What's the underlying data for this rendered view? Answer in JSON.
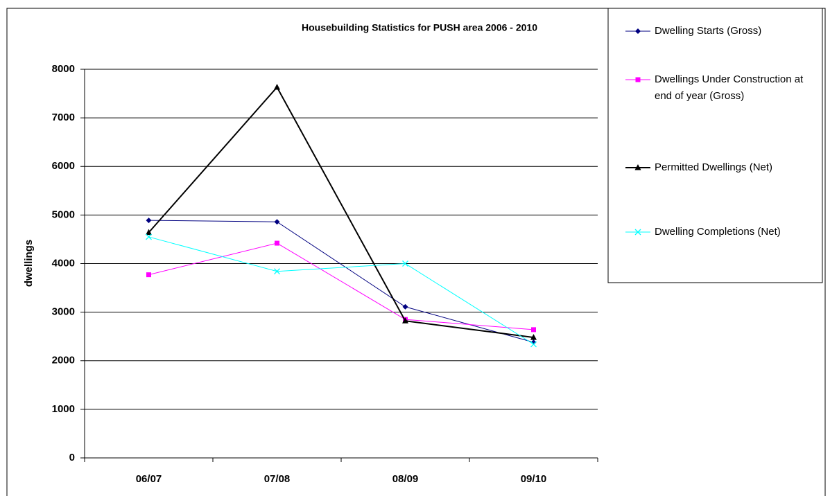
{
  "chart_data": {
    "type": "line",
    "title": "Housebuilding Statistics for PUSH area 2006 - 2010",
    "y_label": "dwellings",
    "categories": [
      "06/07",
      "07/08",
      "08/09",
      "09/10"
    ],
    "series": [
      {
        "name": "Dwelling Starts (Gross)",
        "color": "#000080",
        "marker": "diamond",
        "values": [
          4890,
          4860,
          3110,
          2380
        ]
      },
      {
        "name": "Dwellings Under Construction at end of year (Gross)",
        "color": "#ff00ff",
        "marker": "square",
        "values": [
          3770,
          4420,
          2850,
          2640
        ]
      },
      {
        "name": "Permitted Dwellings (Net)",
        "color": "#000000",
        "marker": "triangle",
        "values": [
          4640,
          7630,
          2820,
          2480
        ]
      },
      {
        "name": "Dwelling Completions (Net)",
        "color": "#00ffff",
        "marker": "x",
        "values": [
          4550,
          3840,
          4000,
          2340
        ]
      }
    ],
    "ylim": [
      0,
      8000
    ],
    "yticks": [
      0,
      1000,
      2000,
      3000,
      4000,
      5000,
      6000,
      7000,
      8000
    ],
    "grid": true,
    "legend": "right"
  }
}
